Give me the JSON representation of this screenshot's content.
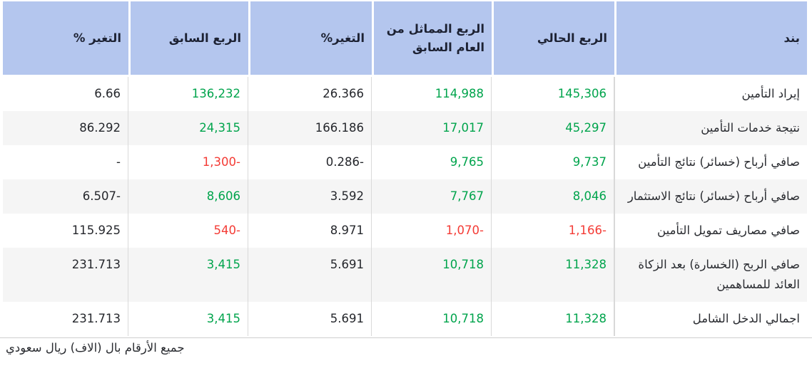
{
  "colors": {
    "header_bg": "#b4c6ee",
    "header_text": "#1d2233",
    "green": "#00a44c",
    "red": "#f43b35",
    "dark": "#25272c",
    "alt_row_bg": "#f5f5f5",
    "separator": "#d9d9d9",
    "footer_line": "#cfcfcf"
  },
  "table": {
    "headers": {
      "item": "بند",
      "current": "الربع الحالي",
      "prior_year": "الربع المماثل من العام السابق",
      "change_yoy": "التغير%",
      "previous": "الربع السابق",
      "change_qoq": "التغير %"
    },
    "rows": [
      {
        "item": "إيراد التأمين",
        "current": {
          "v": "145,306",
          "c": "green"
        },
        "prior_year": {
          "v": "114,988",
          "c": "green"
        },
        "change_yoy": {
          "v": "26.366",
          "c": "dark"
        },
        "previous": {
          "v": "136,232",
          "c": "green"
        },
        "change_qoq": {
          "v": "6.66",
          "c": "dark"
        }
      },
      {
        "item": "نتيجة خدمات التأمين",
        "current": {
          "v": "45,297",
          "c": "green"
        },
        "prior_year": {
          "v": "17,017",
          "c": "green"
        },
        "change_yoy": {
          "v": "166.186",
          "c": "dark"
        },
        "previous": {
          "v": "24,315",
          "c": "green"
        },
        "change_qoq": {
          "v": "86.292",
          "c": "dark"
        }
      },
      {
        "item": "صافي أرباح (خسائر) نتائج التأمين",
        "current": {
          "v": "9,737",
          "c": "green"
        },
        "prior_year": {
          "v": "9,765",
          "c": "green"
        },
        "change_yoy": {
          "v": "0.286-",
          "c": "dark"
        },
        "previous": {
          "v": "1,300-",
          "c": "red"
        },
        "change_qoq": {
          "v": "-",
          "c": "dark"
        }
      },
      {
        "item": "صافي أرباح (خسائر) نتائج الاستثمار",
        "current": {
          "v": "8,046",
          "c": "green"
        },
        "prior_year": {
          "v": "7,767",
          "c": "green"
        },
        "change_yoy": {
          "v": "3.592",
          "c": "dark"
        },
        "previous": {
          "v": "8,606",
          "c": "green"
        },
        "change_qoq": {
          "v": "6.507-",
          "c": "dark"
        }
      },
      {
        "item": "صافي مصاريف تمويل التأمين",
        "current": {
          "v": "1,166-",
          "c": "red"
        },
        "prior_year": {
          "v": "1,070-",
          "c": "red"
        },
        "change_yoy": {
          "v": "8.971",
          "c": "dark"
        },
        "previous": {
          "v": "540-",
          "c": "red"
        },
        "change_qoq": {
          "v": "115.925",
          "c": "dark"
        }
      },
      {
        "item": "صافي الربح (الخسارة) بعد الزكاة العائد للمساهمين",
        "current": {
          "v": "11,328",
          "c": "green"
        },
        "prior_year": {
          "v": "10,718",
          "c": "green"
        },
        "change_yoy": {
          "v": "5.691",
          "c": "dark"
        },
        "previous": {
          "v": "3,415",
          "c": "green"
        },
        "change_qoq": {
          "v": "231.713",
          "c": "dark"
        }
      },
      {
        "item": "اجمالي الدخل الشامل",
        "current": {
          "v": "11,328",
          "c": "green"
        },
        "prior_year": {
          "v": "10,718",
          "c": "green"
        },
        "change_yoy": {
          "v": "5.691",
          "c": "dark"
        },
        "previous": {
          "v": "3,415",
          "c": "green"
        },
        "change_qoq": {
          "v": "231.713",
          "c": "dark"
        }
      }
    ]
  },
  "footer": {
    "note": "جميع الأرقام بال (الاف) ريال سعودي"
  }
}
